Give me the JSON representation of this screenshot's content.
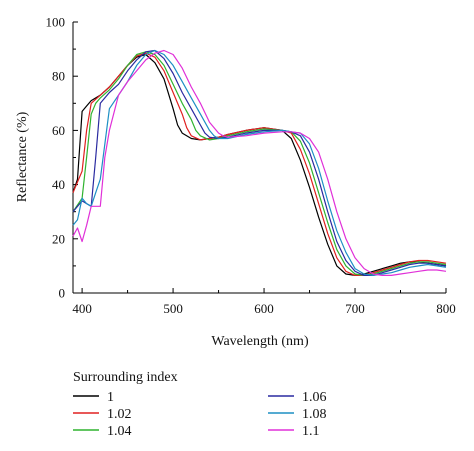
{
  "chart_data": {
    "type": "line",
    "title": "",
    "xlabel": "Wavelength (nm)",
    "ylabel": "Reflectance (%)",
    "xlim": [
      390,
      800
    ],
    "ylim": [
      0,
      100
    ],
    "xticks": [
      400,
      500,
      600,
      700,
      800
    ],
    "yticks": [
      0,
      20,
      40,
      60,
      80,
      100
    ],
    "grid": false,
    "legend_title": "Surrounding index",
    "legend_position": "below",
    "series": [
      {
        "name": "1",
        "color": "#000000",
        "x": [
          390,
          395,
          400,
          405,
          410,
          420,
          430,
          440,
          450,
          460,
          470,
          480,
          490,
          500,
          505,
          510,
          520,
          530,
          540,
          550,
          560,
          580,
          600,
          620,
          630,
          640,
          650,
          660,
          670,
          680,
          690,
          700,
          710,
          720,
          730,
          740,
          750,
          760,
          770,
          780,
          790,
          800
        ],
        "y": [
          37,
          42,
          67,
          69,
          71,
          73,
          76,
          80,
          84,
          87,
          88,
          85,
          79,
          68,
          62,
          59,
          57,
          56.5,
          57,
          57.5,
          58.5,
          60,
          61,
          60,
          57,
          49,
          39,
          28,
          18,
          10,
          7,
          6.5,
          7,
          8,
          9,
          10,
          11,
          11.5,
          11.5,
          11,
          10.5,
          10
        ]
      },
      {
        "name": "1.02",
        "color": "#e02020",
        "x": [
          390,
          400,
          405,
          410,
          420,
          430,
          440,
          450,
          460,
          470,
          480,
          490,
          500,
          510,
          515,
          520,
          530,
          540,
          550,
          560,
          580,
          600,
          620,
          630,
          640,
          650,
          660,
          670,
          680,
          690,
          700,
          710,
          720,
          730,
          740,
          750,
          760,
          770,
          780,
          790,
          800
        ],
        "y": [
          37,
          45,
          60,
          70,
          73,
          76,
          80,
          84,
          87.5,
          88.5,
          87,
          82,
          74,
          66,
          61,
          58,
          56.5,
          57,
          57.5,
          58.5,
          60,
          61,
          60,
          59,
          53,
          44,
          33,
          22,
          13,
          8,
          6.5,
          6.5,
          7.5,
          8.5,
          9.5,
          10.5,
          11.5,
          12,
          12,
          11.5,
          11
        ]
      },
      {
        "name": "1.04",
        "color": "#2fb32f",
        "x": [
          390,
          400,
          405,
          410,
          415,
          420,
          430,
          440,
          450,
          460,
          470,
          480,
          490,
          500,
          510,
          520,
          525,
          530,
          540,
          550,
          560,
          580,
          600,
          620,
          630,
          640,
          650,
          660,
          670,
          680,
          690,
          700,
          710,
          720,
          730,
          740,
          750,
          760,
          770,
          780,
          790,
          800
        ],
        "y": [
          30,
          35,
          50,
          66,
          70,
          72,
          75,
          79,
          84,
          88,
          89,
          88,
          84,
          77,
          70,
          64,
          60,
          58,
          56.5,
          57,
          58,
          59.5,
          60.5,
          60,
          59.5,
          56,
          48,
          37,
          26,
          16,
          10,
          7,
          6.5,
          7,
          8,
          9,
          10,
          11,
          11.5,
          11.5,
          11,
          10.5
        ]
      },
      {
        "name": "1.06",
        "color": "#2a2aa0",
        "x": [
          390,
          400,
          405,
          410,
          415,
          420,
          430,
          440,
          450,
          460,
          470,
          480,
          490,
          500,
          510,
          520,
          530,
          535,
          540,
          550,
          560,
          580,
          600,
          620,
          630,
          640,
          650,
          660,
          670,
          680,
          690,
          700,
          710,
          720,
          730,
          740,
          750,
          760,
          770,
          780,
          790,
          800
        ],
        "y": [
          30,
          34,
          33,
          32,
          50,
          70,
          74,
          77,
          82,
          86,
          89,
          89.5,
          86.5,
          81,
          74,
          68,
          62,
          59,
          57.5,
          57,
          57.5,
          59,
          60,
          60,
          59.5,
          58,
          52,
          42,
          30,
          19,
          12,
          8,
          6.5,
          6.5,
          7.5,
          8.5,
          9.5,
          10.5,
          11,
          11,
          10.5,
          10
        ]
      },
      {
        "name": "1.08",
        "color": "#1d8fc4",
        "x": [
          390,
          395,
          400,
          405,
          410,
          415,
          420,
          430,
          440,
          450,
          460,
          470,
          480,
          490,
          500,
          510,
          520,
          530,
          540,
          545,
          550,
          560,
          580,
          600,
          620,
          630,
          640,
          650,
          660,
          670,
          680,
          690,
          700,
          710,
          720,
          730,
          740,
          750,
          760,
          770,
          780,
          790,
          800
        ],
        "y": [
          25,
          27,
          35,
          33,
          32,
          37,
          42,
          68,
          73,
          78,
          84,
          88,
          89.5,
          88,
          84,
          78,
          72,
          66,
          60,
          58,
          57,
          57,
          58.5,
          59.5,
          60,
          59.5,
          59,
          55,
          46,
          34,
          23,
          15,
          9,
          7,
          6.5,
          7,
          7.5,
          8.5,
          9.5,
          10,
          10.5,
          10,
          9.5
        ]
      },
      {
        "name": "1.1",
        "color": "#e030d8",
        "x": [
          390,
          395,
          400,
          405,
          410,
          415,
          420,
          425,
          430,
          440,
          450,
          460,
          470,
          480,
          490,
          500,
          510,
          520,
          530,
          540,
          550,
          555,
          560,
          580,
          600,
          620,
          630,
          640,
          650,
          660,
          670,
          680,
          690,
          700,
          710,
          720,
          730,
          740,
          750,
          760,
          770,
          780,
          790,
          800
        ],
        "y": [
          21,
          24,
          19,
          25,
          32,
          32,
          32,
          50,
          60,
          73,
          78,
          82,
          86,
          88.5,
          89.5,
          88,
          83,
          76,
          70,
          63,
          59,
          58,
          57.5,
          58,
          59,
          59.5,
          59.5,
          59,
          57,
          52,
          42,
          30,
          20,
          13,
          9,
          7,
          6.5,
          6.5,
          7,
          7.5,
          8,
          8.5,
          8.5,
          8
        ]
      }
    ]
  }
}
